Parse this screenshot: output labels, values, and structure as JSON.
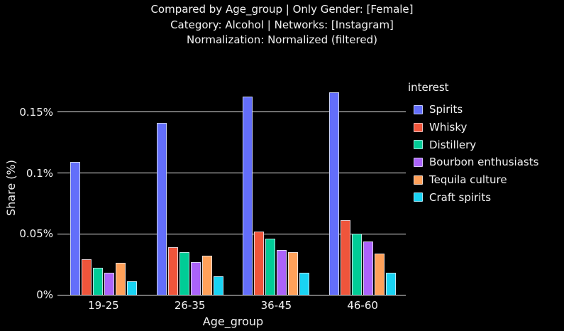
{
  "title": {
    "line1": "Compared by Age_group | Only Gender: [Female]",
    "line2": "Category: Alcohol | Networks: [Instagram]",
    "line3": "Normalization: Normalized (filtered)"
  },
  "colors": {
    "background": "#000000",
    "text": "#f2f2f2",
    "gridline": "#ebebeb",
    "bar_border": "rgba(229,236,246,0.8)"
  },
  "chart_data": {
    "type": "bar",
    "title": "Compared by Age_group | Only Gender: [Female] — Category: Alcohol | Networks: [Instagram] — Normalization: Normalized (filtered)",
    "xlabel": "Age_group",
    "ylabel": "Share (%)",
    "categories": [
      "19-25",
      "26-35",
      "36-45",
      "46-60"
    ],
    "series": [
      {
        "name": "Spirits",
        "color": "#636EFA",
        "values": [
          0.109,
          0.141,
          0.163,
          0.166
        ]
      },
      {
        "name": "Whisky",
        "color": "#EF553B",
        "values": [
          0.029,
          0.039,
          0.052,
          0.061
        ]
      },
      {
        "name": "Distillery",
        "color": "#00CC96",
        "values": [
          0.022,
          0.035,
          0.046,
          0.05
        ]
      },
      {
        "name": "Bourbon enthusiasts",
        "color": "#AB63FA",
        "values": [
          0.018,
          0.027,
          0.037,
          0.044
        ]
      },
      {
        "name": "Tequila culture",
        "color": "#FFA15A",
        "values": [
          0.026,
          0.032,
          0.035,
          0.034
        ]
      },
      {
        "name": "Craft spirits",
        "color": "#19D3F3",
        "values": [
          0.011,
          0.015,
          0.018,
          0.018
        ]
      }
    ],
    "ylim": [
      0,
      0.175
    ],
    "yticks": [
      {
        "value": 0.0,
        "label": "0%"
      },
      {
        "value": 0.05,
        "label": "0.05%"
      },
      {
        "value": 0.1,
        "label": "0.1%"
      },
      {
        "value": 0.15,
        "label": "0.15%"
      }
    ],
    "value_suffix": "%",
    "grid": true,
    "legend_title": "interest",
    "legend_position": "right"
  }
}
